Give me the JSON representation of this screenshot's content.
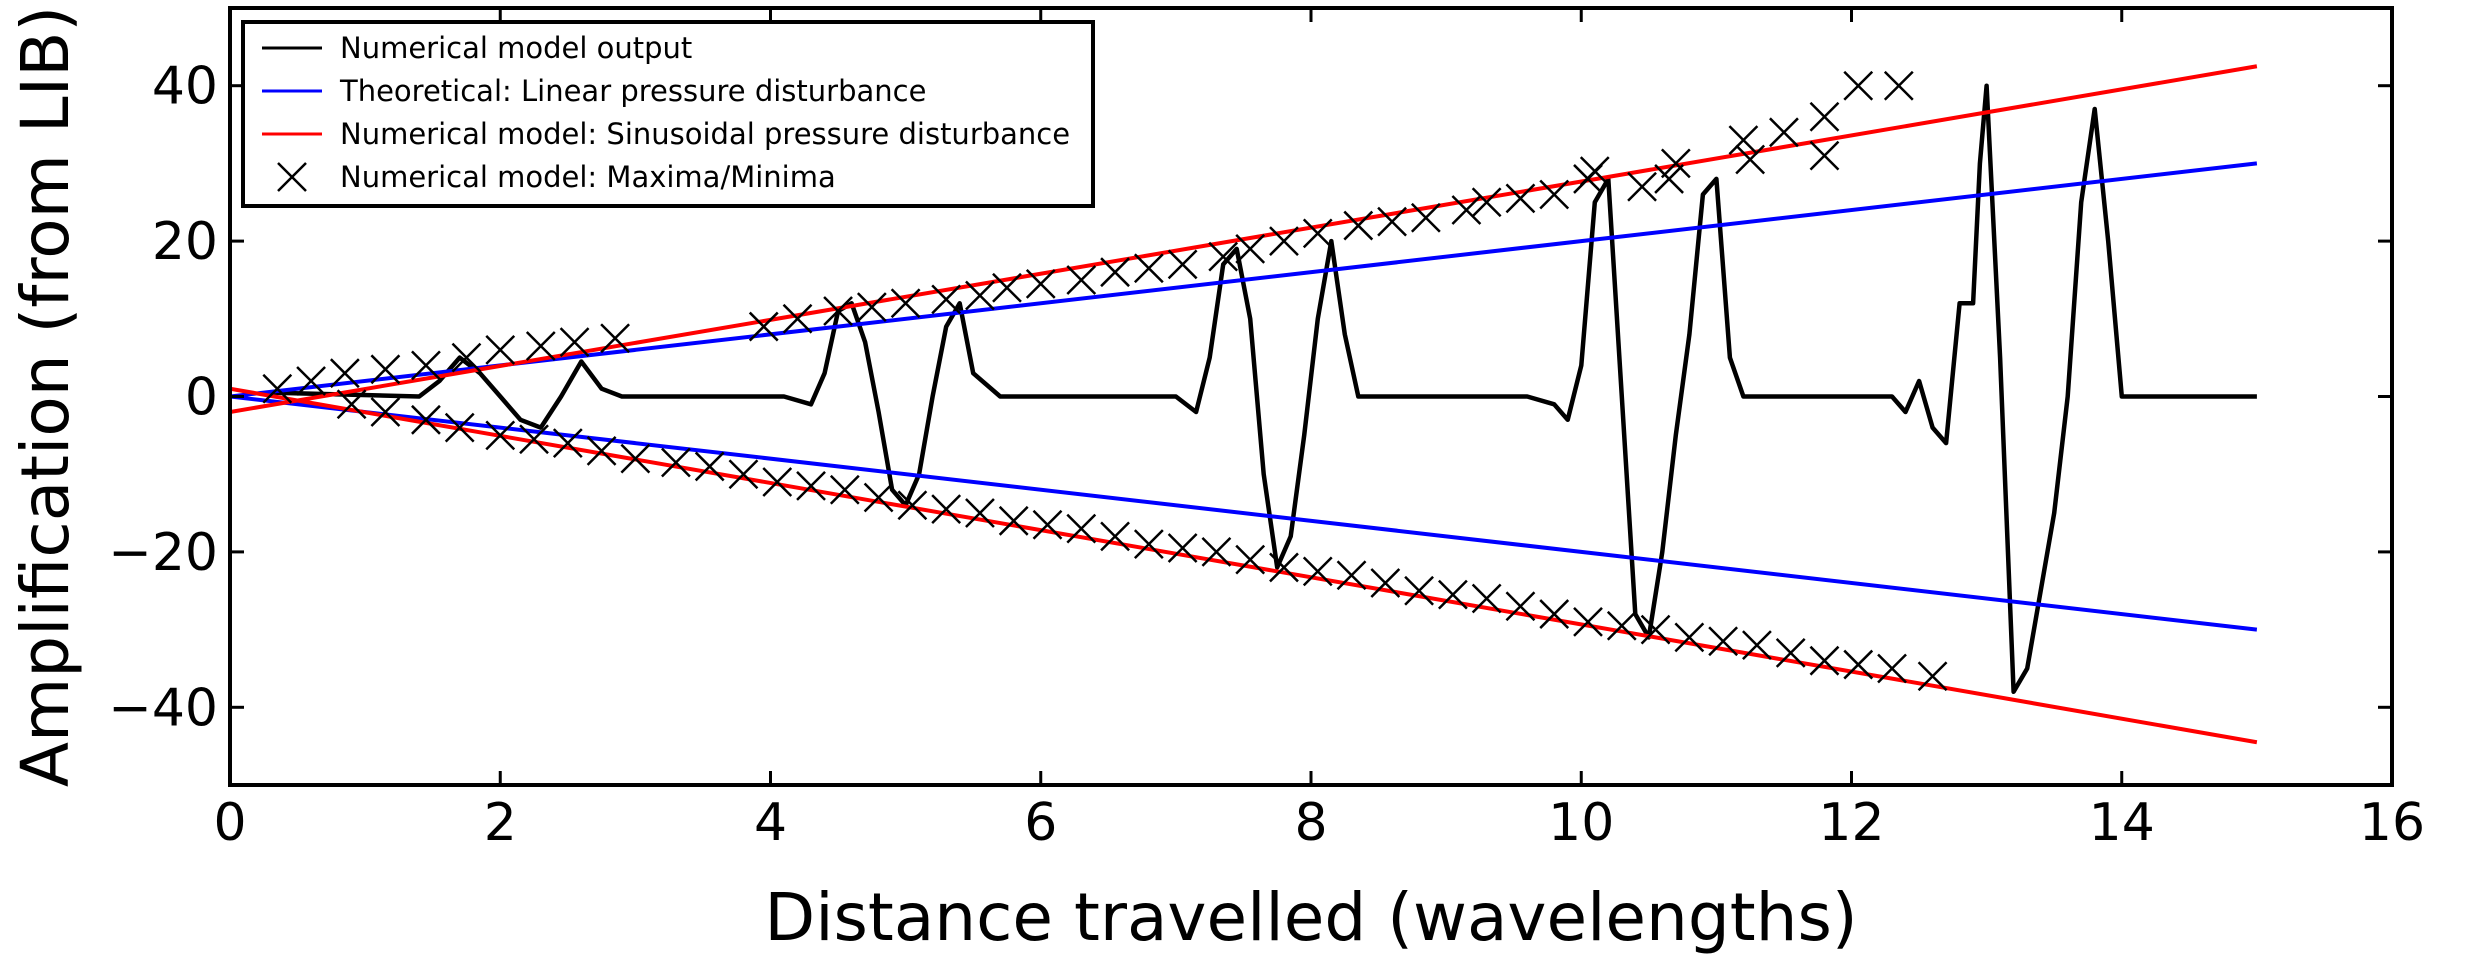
{
  "chart_data": {
    "type": "line",
    "xlabel": "Distance travelled (wavelengths)",
    "ylabel": "Amplification (from LIB)",
    "xlim": [
      0,
      16
    ],
    "ylim": [
      -50,
      50
    ],
    "xticks": [
      0,
      2,
      4,
      6,
      8,
      10,
      12,
      14,
      16
    ],
    "yticks": [
      -40,
      -20,
      0,
      20,
      40
    ],
    "ytick_labels": [
      "−40",
      "−20",
      "0",
      "20",
      "40"
    ],
    "grid": false,
    "legend_position": "top-left",
    "series": [
      {
        "name": "Numerical model output",
        "kind": "line",
        "color": "#000000",
        "points": [
          [
            0.3,
            0.5
          ],
          [
            1.4,
            0
          ],
          [
            1.55,
            2
          ],
          [
            1.7,
            5
          ],
          [
            1.85,
            3
          ],
          [
            2.0,
            0
          ],
          [
            2.15,
            -3
          ],
          [
            2.3,
            -4
          ],
          [
            2.45,
            0
          ],
          [
            2.6,
            4.5
          ],
          [
            2.75,
            1
          ],
          [
            2.9,
            0
          ],
          [
            4.1,
            0
          ],
          [
            4.3,
            -1
          ],
          [
            4.4,
            3
          ],
          [
            4.5,
            11
          ],
          [
            4.6,
            12
          ],
          [
            4.7,
            7
          ],
          [
            4.8,
            -2
          ],
          [
            4.9,
            -12
          ],
          [
            5.0,
            -14
          ],
          [
            5.1,
            -10
          ],
          [
            5.2,
            0
          ],
          [
            5.3,
            9
          ],
          [
            5.4,
            12
          ],
          [
            5.5,
            3
          ],
          [
            5.7,
            0
          ],
          [
            7.0,
            0
          ],
          [
            7.15,
            -2
          ],
          [
            7.25,
            5
          ],
          [
            7.35,
            17
          ],
          [
            7.45,
            19
          ],
          [
            7.55,
            10
          ],
          [
            7.65,
            -10
          ],
          [
            7.75,
            -22
          ],
          [
            7.85,
            -18
          ],
          [
            7.95,
            -5
          ],
          [
            8.05,
            10
          ],
          [
            8.15,
            20
          ],
          [
            8.25,
            8
          ],
          [
            8.35,
            0
          ],
          [
            9.6,
            0
          ],
          [
            9.8,
            -1
          ],
          [
            9.9,
            -3
          ],
          [
            10.0,
            4
          ],
          [
            10.1,
            25
          ],
          [
            10.2,
            28
          ],
          [
            10.3,
            0
          ],
          [
            10.4,
            -28
          ],
          [
            10.5,
            -31
          ],
          [
            10.6,
            -20
          ],
          [
            10.7,
            -5
          ],
          [
            10.8,
            8
          ],
          [
            10.9,
            26
          ],
          [
            11.0,
            28
          ],
          [
            11.1,
            5
          ],
          [
            11.2,
            0
          ],
          [
            12.3,
            0
          ],
          [
            12.4,
            -2
          ],
          [
            12.5,
            2
          ],
          [
            12.6,
            -4
          ],
          [
            12.7,
            -6
          ],
          [
            12.8,
            12
          ],
          [
            12.9,
            12
          ],
          [
            12.95,
            30
          ],
          [
            13.0,
            40
          ],
          [
            13.1,
            5
          ],
          [
            13.2,
            -38
          ],
          [
            13.3,
            -35
          ],
          [
            13.5,
            -15
          ],
          [
            13.6,
            0
          ],
          [
            13.7,
            25
          ],
          [
            13.8,
            37
          ],
          [
            13.9,
            20
          ],
          [
            14.0,
            0
          ],
          [
            14.2,
            0
          ],
          [
            15.0,
            0
          ]
        ]
      },
      {
        "name": "Theoretical: Linear pressure disturbance",
        "kind": "line",
        "color": "#0000ff",
        "segments": [
          [
            [
              0,
              0
            ],
            [
              15,
              30
            ]
          ],
          [
            [
              0,
              0
            ],
            [
              15,
              -30
            ]
          ]
        ]
      },
      {
        "name": "Numerical model: Sinusoidal pressure disturbance",
        "kind": "line",
        "color": "#ff0000",
        "segments": [
          [
            [
              0,
              -2
            ],
            [
              15,
              42.5
            ]
          ],
          [
            [
              0,
              1
            ],
            [
              15,
              -44.5
            ]
          ]
        ]
      },
      {
        "name": "Numerical model: Maxima/Minima",
        "kind": "marker",
        "color": "#000000",
        "points": [
          [
            0.35,
            1
          ],
          [
            0.6,
            2
          ],
          [
            0.85,
            3
          ],
          [
            1.15,
            3.5
          ],
          [
            1.45,
            4
          ],
          [
            1.75,
            5
          ],
          [
            2.0,
            6
          ],
          [
            2.3,
            6.5
          ],
          [
            2.55,
            7
          ],
          [
            2.85,
            7.5
          ],
          [
            3.95,
            9
          ],
          [
            4.2,
            10
          ],
          [
            4.5,
            11
          ],
          [
            4.75,
            11.5
          ],
          [
            5.0,
            12
          ],
          [
            5.3,
            12.5
          ],
          [
            5.55,
            13
          ],
          [
            5.75,
            14
          ],
          [
            6.0,
            14.5
          ],
          [
            6.3,
            15
          ],
          [
            6.55,
            16
          ],
          [
            6.8,
            16.5
          ],
          [
            7.05,
            17
          ],
          [
            7.35,
            18
          ],
          [
            7.55,
            19
          ],
          [
            7.8,
            20
          ],
          [
            8.05,
            21
          ],
          [
            8.35,
            22
          ],
          [
            8.6,
            22.5
          ],
          [
            8.85,
            23
          ],
          [
            9.15,
            24
          ],
          [
            9.3,
            25
          ],
          [
            9.55,
            25.5
          ],
          [
            9.8,
            26
          ],
          [
            10.05,
            28
          ],
          [
            10.1,
            29
          ],
          [
            10.45,
            27
          ],
          [
            10.65,
            28
          ],
          [
            10.7,
            30
          ],
          [
            11.2,
            33
          ],
          [
            11.25,
            30.5
          ],
          [
            11.5,
            34
          ],
          [
            11.8,
            36
          ],
          [
            11.8,
            31
          ],
          [
            12.05,
            40
          ],
          [
            12.35,
            40
          ],
          [
            0.9,
            -1
          ],
          [
            1.15,
            -2
          ],
          [
            1.45,
            -3
          ],
          [
            1.7,
            -4
          ],
          [
            2.0,
            -5
          ],
          [
            2.25,
            -5.5
          ],
          [
            2.5,
            -6
          ],
          [
            2.75,
            -7
          ],
          [
            3.0,
            -8
          ],
          [
            3.3,
            -8.5
          ],
          [
            3.55,
            -9
          ],
          [
            3.8,
            -10
          ],
          [
            4.05,
            -11
          ],
          [
            4.3,
            -11.5
          ],
          [
            4.55,
            -12
          ],
          [
            4.8,
            -13
          ],
          [
            5.05,
            -14
          ],
          [
            5.3,
            -14.5
          ],
          [
            5.55,
            -15
          ],
          [
            5.8,
            -16
          ],
          [
            6.05,
            -16.5
          ],
          [
            6.3,
            -17
          ],
          [
            6.55,
            -18
          ],
          [
            6.8,
            -19
          ],
          [
            7.05,
            -19.5
          ],
          [
            7.3,
            -20
          ],
          [
            7.55,
            -21
          ],
          [
            7.8,
            -22
          ],
          [
            8.05,
            -22.5
          ],
          [
            8.3,
            -23
          ],
          [
            8.55,
            -24
          ],
          [
            8.8,
            -25
          ],
          [
            9.05,
            -25.5
          ],
          [
            9.3,
            -26
          ],
          [
            9.55,
            -27
          ],
          [
            9.8,
            -28
          ],
          [
            10.05,
            -29
          ],
          [
            10.3,
            -29.5
          ],
          [
            10.55,
            -30
          ],
          [
            10.8,
            -31
          ],
          [
            11.05,
            -31.5
          ],
          [
            11.3,
            -32
          ],
          [
            11.55,
            -33
          ],
          [
            11.8,
            -34
          ],
          [
            12.05,
            -34.5
          ],
          [
            12.3,
            -35
          ],
          [
            12.6,
            -36
          ]
        ]
      }
    ]
  }
}
